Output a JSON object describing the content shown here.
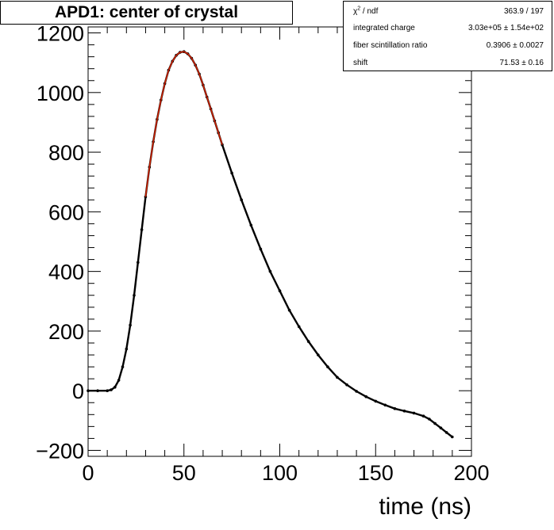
{
  "title": "APD1: center of crystal",
  "stats": {
    "rows": [
      {
        "label_pre": "χ",
        "label_sup": "2",
        "label_post": " / ndf",
        "value": "363.9 / 197"
      },
      {
        "label_pre": "integrated charge",
        "label_sup": "",
        "label_post": "",
        "value": "3.03e+05 ± 1.54e+02"
      },
      {
        "label_pre": "fiber scintillation ratio",
        "label_sup": "",
        "label_post": "",
        "value": "0.3906 ± 0.0027"
      },
      {
        "label_pre": "shift",
        "label_sup": "",
        "label_post": "",
        "value": "71.53 ± 0.16"
      }
    ]
  },
  "chart_data": {
    "type": "scatter",
    "title": "APD1: center of crystal",
    "xlabel": "time (ns)",
    "ylabel": "",
    "xlim": [
      0,
      200
    ],
    "ylim": [
      -220,
      1220
    ],
    "x_ticks": [
      "0",
      "50",
      "100",
      "150",
      "200"
    ],
    "y_ticks": [
      "−200",
      "0",
      "200",
      "400",
      "600",
      "800",
      "1000",
      "1200"
    ],
    "grid": false,
    "series": [
      {
        "name": "",
        "color": "#000000",
        "x": [
          0,
          5,
          10,
          12,
          14,
          16,
          18,
          20,
          22,
          24,
          26,
          28,
          30,
          32,
          34,
          36,
          38,
          40,
          42,
          44,
          46,
          48,
          50,
          52,
          54,
          56,
          58,
          60,
          62,
          64,
          66,
          68,
          70,
          75,
          80,
          85,
          90,
          95,
          100,
          105,
          110,
          115,
          120,
          125,
          130,
          135,
          140,
          145,
          150,
          155,
          160,
          165,
          170,
          175,
          178,
          181,
          184,
          187,
          190
        ],
        "y": [
          0,
          0,
          0,
          3,
          12,
          35,
          80,
          140,
          220,
          320,
          430,
          540,
          650,
          750,
          835,
          910,
          975,
          1030,
          1075,
          1105,
          1125,
          1135,
          1137,
          1130,
          1115,
          1092,
          1062,
          1025,
          985,
          945,
          905,
          865,
          825,
          730,
          640,
          555,
          475,
          400,
          335,
          270,
          215,
          165,
          120,
          80,
          45,
          20,
          -2,
          -20,
          -35,
          -48,
          -60,
          -68,
          -75,
          -85,
          -95,
          -110,
          -125,
          -140,
          -155
        ]
      },
      {
        "name": "",
        "color": "#cc2200",
        "x": [
          30,
          32,
          34,
          36,
          38,
          40,
          42,
          44,
          46,
          48,
          50,
          52,
          54,
          56,
          58,
          60,
          62,
          64,
          66,
          68,
          70
        ],
        "y": [
          650,
          750,
          835,
          910,
          975,
          1030,
          1075,
          1105,
          1125,
          1135,
          1137,
          1130,
          1115,
          1092,
          1062,
          1025,
          985,
          945,
          905,
          865,
          825
        ]
      }
    ]
  }
}
